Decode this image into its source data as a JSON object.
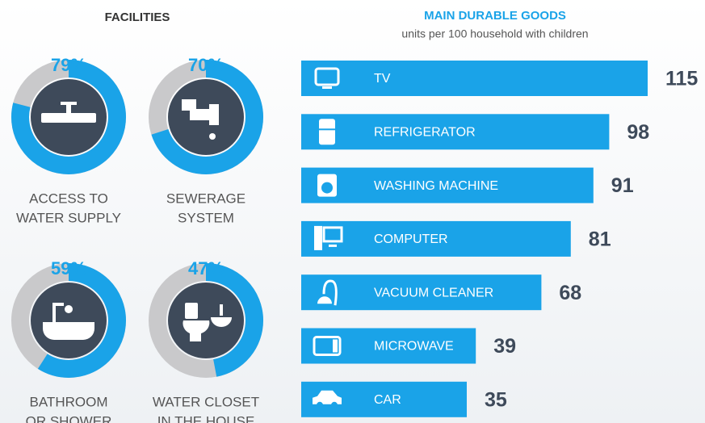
{
  "chart_data": [
    {
      "type": "donut",
      "title": "FACILITIES",
      "categories": [
        [
          "ACCESS TO",
          "WATER SUPPLY"
        ],
        [
          "SEWERAGE",
          "SYSTEM"
        ],
        [
          "BATHROOM",
          "OR SHOWER"
        ],
        [
          "WATER CLOSET",
          "IN THE HOUSE"
        ]
      ],
      "values": [
        79,
        70,
        59,
        47
      ],
      "value_labels": [
        "79%",
        "70%",
        "59%",
        "47%"
      ],
      "color": "#1aa3e8",
      "rest_color": "#c9c9cb"
    },
    {
      "type": "hbar",
      "title": "MAIN DURABLE GOODS",
      "subtitle": "units per 100 household with children",
      "categories": [
        "TV",
        "REFRIGERATOR",
        "WASHING MACHINE",
        "COMPUTER",
        "VACUUM CLEANER",
        "MICROWAVE",
        "CAR"
      ],
      "values": [
        115,
        98,
        91,
        81,
        68,
        39,
        35
      ],
      "color": "#1aa3e8"
    }
  ]
}
